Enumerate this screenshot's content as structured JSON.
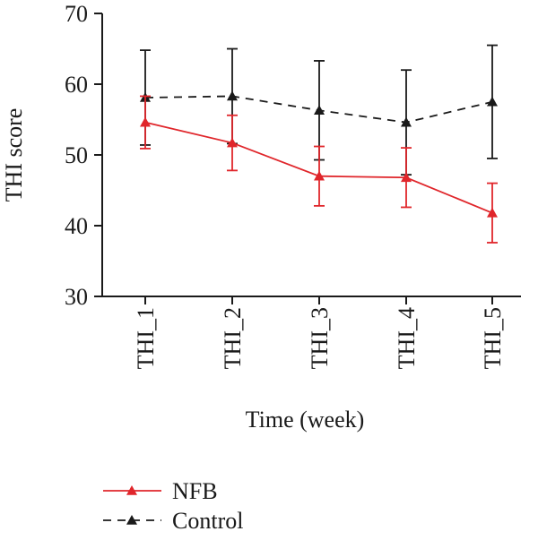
{
  "chart_data": {
    "type": "line",
    "xlabel": "Time (week)",
    "ylabel": "THI score",
    "ylim": [
      30,
      70
    ],
    "yticks": [
      30,
      40,
      50,
      60,
      70
    ],
    "categories": [
      "THI_1",
      "THI_2",
      "THI_3",
      "THI_4",
      "THI_5"
    ],
    "grid": false,
    "legend_position": "bottom-left",
    "series": [
      {
        "name": "NFB",
        "color": "#e0262b",
        "line_style": "solid",
        "marker": "triangle",
        "values": [
          54.6,
          51.7,
          47.0,
          46.8,
          41.8
        ],
        "error": [
          3.7,
          3.9,
          4.2,
          4.2,
          4.2
        ]
      },
      {
        "name": "Control",
        "color": "#1a1a1a",
        "line_style": "dashed",
        "marker": "triangle",
        "values": [
          58.1,
          58.3,
          56.3,
          54.6,
          57.5
        ],
        "error": [
          6.7,
          6.7,
          7.0,
          7.4,
          8.0
        ]
      }
    ]
  }
}
